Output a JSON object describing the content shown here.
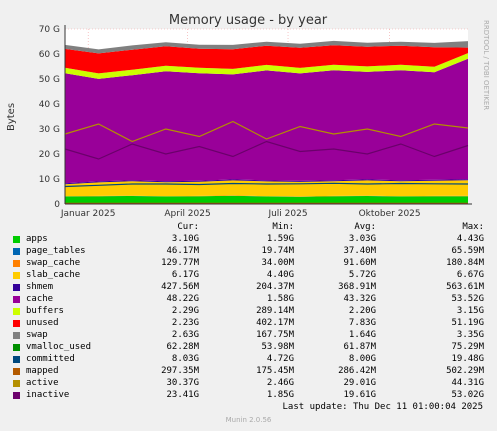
{
  "chart_data": {
    "type": "area",
    "title": "Memory usage - by year",
    "ylabel": "Bytes",
    "side_label": "RRDTOOL / TOBI OETIKER",
    "ylim": [
      0,
      70
    ],
    "y_unit": "G",
    "y_ticks": [
      0,
      10,
      20,
      30,
      40,
      50,
      60,
      70
    ],
    "y_tick_labels": [
      "0",
      "10 G",
      "20 G",
      "30 G",
      "40 G",
      "50 G",
      "60 G",
      "70 G"
    ],
    "x_range": [
      "2024-12-11",
      "2025-12-11"
    ],
    "x_ticks": [
      {
        "date": "2025-01-01",
        "label": "Januar 2025"
      },
      {
        "date": "2025-04-01",
        "label": "April 2025"
      },
      {
        "date": "2025-07-01",
        "label": "Juli 2025"
      },
      {
        "date": "2025-10-01",
        "label": "Oktober 2025"
      }
    ],
    "grid": true,
    "series": [
      {
        "name": "apps",
        "color": "#00cc00",
        "values_G": [
          3.0,
          3.1,
          3.2,
          3.0,
          3.1,
          3.3,
          3.0,
          2.9,
          3.1,
          3.2,
          3.0,
          3.1,
          3.1
        ]
      },
      {
        "name": "page_tables",
        "color": "#0066b3",
        "values_G": [
          0.04,
          0.04,
          0.04,
          0.04,
          0.04,
          0.04,
          0.04,
          0.04,
          0.04,
          0.04,
          0.04,
          0.04,
          0.04
        ]
      },
      {
        "name": "swap_cache",
        "color": "#ff8000",
        "values_G": [
          0.09,
          0.09,
          0.09,
          0.09,
          0.09,
          0.09,
          0.09,
          0.09,
          0.09,
          0.09,
          0.09,
          0.09,
          0.13
        ]
      },
      {
        "name": "slab_cache",
        "color": "#ffcc00",
        "values_G": [
          4.8,
          5.4,
          5.8,
          5.6,
          5.7,
          6.0,
          5.9,
          5.8,
          5.9,
          6.1,
          6.0,
          6.1,
          6.2
        ]
      },
      {
        "name": "shmem",
        "color": "#330099",
        "values_G": [
          0.4,
          0.4,
          0.4,
          0.4,
          0.4,
          0.4,
          0.4,
          0.4,
          0.4,
          0.4,
          0.4,
          0.4,
          0.4
        ]
      },
      {
        "name": "cache",
        "color": "#990099",
        "values_G": [
          44.0,
          41.0,
          42.0,
          44.0,
          43.0,
          42.0,
          44.0,
          43.0,
          44.0,
          43.0,
          44.0,
          43.0,
          48.2
        ]
      },
      {
        "name": "buffers",
        "color": "#ccff00",
        "values_G": [
          2.2,
          2.2,
          2.2,
          2.2,
          2.2,
          2.2,
          2.2,
          2.2,
          2.2,
          2.2,
          2.2,
          2.2,
          2.3
        ]
      },
      {
        "name": "unused",
        "color": "#ff0000",
        "values_G": [
          7.5,
          8.0,
          8.0,
          7.8,
          7.6,
          7.9,
          7.7,
          8.1,
          7.8,
          7.9,
          7.6,
          7.8,
          2.2
        ]
      },
      {
        "name": "swap",
        "color": "#808080",
        "values_G": [
          1.6,
          1.6,
          1.7,
          1.6,
          1.6,
          1.7,
          1.6,
          1.6,
          1.7,
          1.6,
          1.6,
          1.7,
          2.6
        ]
      },
      {
        "name": "vmalloc_used",
        "color": "#008f00",
        "values_G": [
          0.06,
          0.06,
          0.06,
          0.06,
          0.06,
          0.06,
          0.06,
          0.06,
          0.06,
          0.06,
          0.06,
          0.06,
          0.06
        ]
      },
      {
        "name": "committed",
        "color": "#00487d",
        "values_G": [
          7.0,
          7.5,
          8.0,
          8.0,
          7.8,
          8.2,
          8.0,
          8.1,
          8.3,
          8.0,
          8.2,
          8.1,
          8.0
        ]
      },
      {
        "name": "mapped",
        "color": "#b35a00",
        "values_G": [
          0.3,
          0.3,
          0.3,
          0.3,
          0.3,
          0.3,
          0.3,
          0.3,
          0.3,
          0.3,
          0.3,
          0.3,
          0.3
        ]
      },
      {
        "name": "active",
        "color": "#b38f00",
        "values_G": [
          28,
          32,
          25,
          30,
          27,
          33,
          26,
          31,
          28,
          30,
          27,
          32,
          30.4
        ]
      },
      {
        "name": "inactive",
        "color": "#6b006b",
        "values_G": [
          22,
          18,
          24,
          20,
          23,
          19,
          25,
          21,
          22,
          20,
          24,
          19,
          23.4
        ]
      }
    ]
  },
  "legend": {
    "headers": [
      "Cur:",
      "Min:",
      "Avg:",
      "Max:"
    ],
    "rows": [
      {
        "name": "apps",
        "color": "#00cc00",
        "cur": "3.10G",
        "min": "1.59G",
        "avg": "3.03G",
        "max": "4.43G"
      },
      {
        "name": "page_tables",
        "color": "#0066b3",
        "cur": "46.17M",
        "min": "19.74M",
        "avg": "37.40M",
        "max": "65.59M"
      },
      {
        "name": "swap_cache",
        "color": "#ff8000",
        "cur": "129.77M",
        "min": "34.00M",
        "avg": "91.60M",
        "max": "180.84M"
      },
      {
        "name": "slab_cache",
        "color": "#ffcc00",
        "cur": "6.17G",
        "min": "4.40G",
        "avg": "5.72G",
        "max": "6.67G"
      },
      {
        "name": "shmem",
        "color": "#330099",
        "cur": "427.56M",
        "min": "204.37M",
        "avg": "368.91M",
        "max": "563.61M"
      },
      {
        "name": "cache",
        "color": "#990099",
        "cur": "48.22G",
        "min": "1.58G",
        "avg": "43.32G",
        "max": "53.52G"
      },
      {
        "name": "buffers",
        "color": "#ccff00",
        "cur": "2.29G",
        "min": "289.14M",
        "avg": "2.20G",
        "max": "3.15G"
      },
      {
        "name": "unused",
        "color": "#ff0000",
        "cur": "2.23G",
        "min": "402.17M",
        "avg": "7.83G",
        "max": "51.19G"
      },
      {
        "name": "swap",
        "color": "#808080",
        "cur": "2.63G",
        "min": "167.75M",
        "avg": "1.64G",
        "max": "3.35G"
      },
      {
        "name": "vmalloc_used",
        "color": "#008f00",
        "cur": "62.28M",
        "min": "53.98M",
        "avg": "61.87M",
        "max": "75.29M"
      },
      {
        "name": "committed",
        "color": "#00487d",
        "cur": "8.03G",
        "min": "4.72G",
        "avg": "8.00G",
        "max": "19.48G"
      },
      {
        "name": "mapped",
        "color": "#b35a00",
        "cur": "297.35M",
        "min": "175.45M",
        "avg": "286.42M",
        "max": "502.29M"
      },
      {
        "name": "active",
        "color": "#b38f00",
        "cur": "30.37G",
        "min": "2.46G",
        "avg": "29.01G",
        "max": "44.31G"
      },
      {
        "name": "inactive",
        "color": "#6b006b",
        "cur": "23.41G",
        "min": "1.85G",
        "avg": "19.61G",
        "max": "53.02G"
      }
    ]
  },
  "footer": {
    "last_update": "Last update: Thu Dec 11 01:00:04 2025",
    "munin_version": "Munin 2.0.56"
  }
}
